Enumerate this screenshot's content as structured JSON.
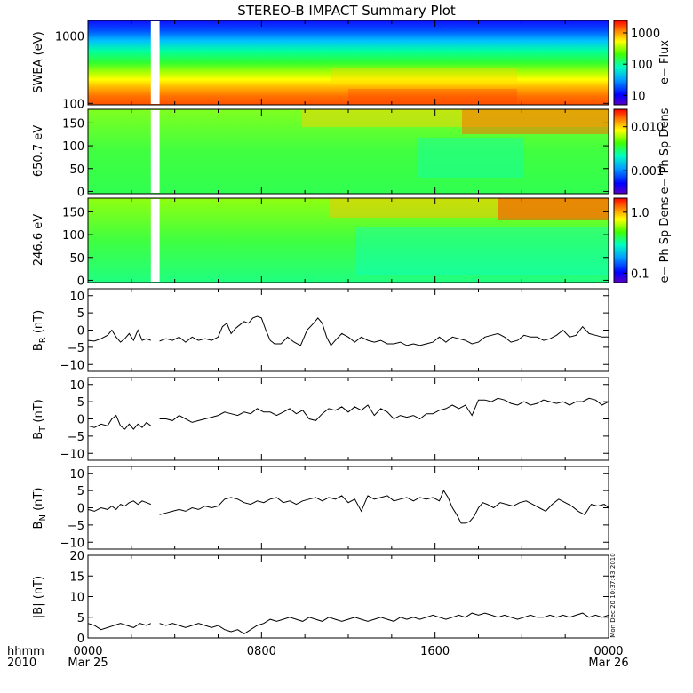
{
  "title": "STEREO-B IMPACT Summary Plot",
  "stamp": "Mon Dec 20 10:37:43 2010",
  "time_axis": {
    "row1_label": "hhmm",
    "row2_label": "2010",
    "ticks": [
      {
        "t": 0,
        "hhmm": "0000",
        "date": "Mar 25"
      },
      {
        "t": 8,
        "hhmm": "0800",
        "date": ""
      },
      {
        "t": 16,
        "hhmm": "1600",
        "date": ""
      },
      {
        "t": 24,
        "hhmm": "0000",
        "date": "Mar 26"
      }
    ],
    "range_hours": [
      0,
      24
    ],
    "data_gap_hours": [
      2.9,
      3.3
    ]
  },
  "chart_data": [
    {
      "type": "heatmap",
      "ylabel": "SWEA (eV)",
      "y_scale": "log",
      "ylim": [
        95,
        1700
      ],
      "y_ticks": [
        {
          "v": 100,
          "label": "100"
        },
        {
          "v": 1000,
          "label": "1000"
        }
      ],
      "colorbar": {
        "label": "e− Flux",
        "scale": "log",
        "range": [
          5,
          2500
        ],
        "ticks": [
          {
            "v": 10,
            "label": "10"
          },
          {
            "v": 100,
            "label": "100"
          },
          {
            "v": 1000,
            "label": "1000"
          }
        ]
      }
    },
    {
      "type": "heatmap",
      "ylabel": "650.7 eV",
      "y_scale": "linear",
      "ylim": [
        -5,
        180
      ],
      "y_ticks": [
        {
          "v": 0,
          "label": "0"
        },
        {
          "v": 50,
          "label": "50"
        },
        {
          "v": 100,
          "label": "100"
        },
        {
          "v": 150,
          "label": "150"
        }
      ],
      "colorbar": {
        "label": "e− Ph Sp Dens",
        "scale": "log",
        "range": [
          0.0003,
          0.025
        ],
        "ticks": [
          {
            "v": 0.001,
            "label": "0.001"
          },
          {
            "v": 0.01,
            "label": "0.010"
          }
        ]
      }
    },
    {
      "type": "heatmap",
      "ylabel": "246.6 eV",
      "y_scale": "linear",
      "ylim": [
        -5,
        180
      ],
      "y_ticks": [
        {
          "v": 0,
          "label": "0"
        },
        {
          "v": 50,
          "label": "50"
        },
        {
          "v": 100,
          "label": "100"
        },
        {
          "v": 150,
          "label": "150"
        }
      ],
      "colorbar": {
        "label": "e− Ph Sp Dens",
        "scale": "log",
        "range": [
          0.07,
          1.7
        ],
        "ticks": [
          {
            "v": 0.1,
            "label": "0.1"
          },
          {
            "v": 1.0,
            "label": "1.0"
          }
        ]
      }
    },
    {
      "type": "line",
      "ylabel": "B",
      "ylabel_sub": "R",
      "ylabel_unit": "(nT)",
      "ylim": [
        -12,
        12
      ],
      "y_ticks": [
        {
          "v": -10,
          "label": "−10"
        },
        {
          "v": -5,
          "label": "−5"
        },
        {
          "v": 0,
          "label": "0"
        },
        {
          "v": 5,
          "label": "5"
        },
        {
          "v": 10,
          "label": "10"
        }
      ],
      "series": [
        {
          "x": [
            0,
            0.3,
            0.6,
            0.9,
            1.1,
            1.3,
            1.5,
            1.7,
            1.9,
            2.1,
            2.3,
            2.5,
            2.7,
            2.9,
            3.3,
            3.6,
            3.9,
            4.2,
            4.5,
            4.8,
            5.1,
            5.4,
            5.7,
            6.0,
            6.2,
            6.4,
            6.6,
            6.8,
            7.0,
            7.2,
            7.4,
            7.6,
            7.8,
            8.0,
            8.2,
            8.4,
            8.6,
            8.9,
            9.2,
            9.5,
            9.8,
            10.1,
            10.4,
            10.6,
            10.8,
            11.0,
            11.2,
            11.4,
            11.7,
            12.0,
            12.3,
            12.6,
            12.9,
            13.2,
            13.5,
            13.8,
            14.1,
            14.4,
            14.7,
            15.0,
            15.3,
            15.6,
            15.9,
            16.2,
            16.5,
            16.8,
            17.1,
            17.4,
            17.7,
            18.0,
            18.3,
            18.6,
            18.9,
            19.2,
            19.5,
            19.8,
            20.1,
            20.4,
            20.7,
            21.0,
            21.3,
            21.6,
            21.9,
            22.2,
            22.5,
            22.8,
            23.1,
            23.4,
            23.7,
            24.0
          ],
          "y": [
            -3,
            -3.2,
            -2.5,
            -1.5,
            0,
            -2,
            -3.5,
            -2.5,
            -1,
            -3,
            0,
            -3,
            -2.5,
            -3,
            -3.2,
            -2.5,
            -3,
            -2,
            -3.5,
            -2,
            -3,
            -2.5,
            -3,
            -2,
            1,
            2,
            -1,
            0.5,
            1.5,
            2.5,
            2,
            3.5,
            4,
            3.5,
            0,
            -3,
            -4,
            -4,
            -2,
            -3.5,
            -4.5,
            0,
            2,
            3.5,
            2,
            -2,
            -4.5,
            -3,
            -1,
            -2,
            -3.5,
            -2,
            -3,
            -3.5,
            -3,
            -4,
            -4,
            -3.5,
            -4.5,
            -4,
            -4.5,
            -4,
            -3.5,
            -2,
            -3.5,
            -2,
            -2.5,
            -3,
            -4,
            -3.5,
            -2,
            -1.5,
            -1,
            -2,
            -3.5,
            -3,
            -1.5,
            -2,
            -2,
            -3,
            -2.5,
            -1.5,
            0,
            -2,
            -1.5,
            1,
            -1,
            -1.5,
            -2,
            -2
          ]
        }
      ]
    },
    {
      "type": "line",
      "ylabel": "B",
      "ylabel_sub": "T",
      "ylabel_unit": "(nT)",
      "ylim": [
        -12,
        12
      ],
      "y_ticks": [
        {
          "v": -10,
          "label": "−10"
        },
        {
          "v": -5,
          "label": "−5"
        },
        {
          "v": 0,
          "label": "0"
        },
        {
          "v": 5,
          "label": "5"
        },
        {
          "v": 10,
          "label": "10"
        }
      ],
      "series": [
        {
          "x": [
            0,
            0.3,
            0.6,
            0.9,
            1.1,
            1.3,
            1.5,
            1.7,
            1.9,
            2.1,
            2.3,
            2.5,
            2.7,
            2.9,
            3.3,
            3.6,
            3.9,
            4.2,
            4.5,
            4.8,
            5.1,
            5.4,
            5.7,
            6.0,
            6.3,
            6.6,
            6.9,
            7.2,
            7.5,
            7.8,
            8.1,
            8.4,
            8.7,
            9.0,
            9.3,
            9.6,
            9.9,
            10.2,
            10.5,
            10.8,
            11.1,
            11.4,
            11.7,
            12.0,
            12.3,
            12.6,
            12.9,
            13.2,
            13.5,
            13.8,
            14.1,
            14.4,
            14.7,
            15.0,
            15.3,
            15.6,
            15.9,
            16.2,
            16.5,
            16.8,
            17.1,
            17.4,
            17.7,
            18.0,
            18.3,
            18.6,
            18.9,
            19.2,
            19.5,
            19.8,
            20.1,
            20.4,
            20.7,
            21.0,
            21.3,
            21.6,
            21.9,
            22.2,
            22.5,
            22.8,
            23.1,
            23.4,
            23.7,
            24.0
          ],
          "y": [
            -2,
            -2.5,
            -1.5,
            -2,
            0,
            1,
            -2,
            -3,
            -1.5,
            -3,
            -1.5,
            -2.5,
            -1,
            -2,
            0,
            0,
            -0.5,
            1,
            0,
            -1,
            -0.5,
            0,
            0.5,
            1,
            2,
            1.5,
            1,
            2,
            1.5,
            3,
            2,
            2,
            1,
            2,
            3,
            1.5,
            2.5,
            0,
            -0.5,
            1.5,
            3,
            2.5,
            3.5,
            2,
            3.5,
            2.5,
            4,
            1,
            3,
            2,
            0,
            1,
            0.5,
            1,
            0,
            1.5,
            1.5,
            2.5,
            3,
            4,
            3,
            4,
            1,
            5.5,
            5.5,
            5,
            6,
            5.5,
            4.5,
            4,
            5,
            4,
            4.5,
            5.5,
            5,
            4.5,
            5,
            4,
            5,
            5,
            6,
            5.5,
            4,
            5
          ]
        }
      ]
    },
    {
      "type": "line",
      "ylabel": "B",
      "ylabel_sub": "N",
      "ylabel_unit": "(nT)",
      "ylim": [
        -12,
        12
      ],
      "y_ticks": [
        {
          "v": -10,
          "label": "−10"
        },
        {
          "v": -5,
          "label": "−5"
        },
        {
          "v": 0,
          "label": "0"
        },
        {
          "v": 5,
          "label": "5"
        },
        {
          "v": 10,
          "label": "10"
        }
      ],
      "series": [
        {
          "x": [
            0,
            0.3,
            0.6,
            0.9,
            1.1,
            1.3,
            1.5,
            1.7,
            1.9,
            2.1,
            2.3,
            2.5,
            2.7,
            2.9,
            3.3,
            3.6,
            3.9,
            4.2,
            4.5,
            4.8,
            5.1,
            5.4,
            5.7,
            6.0,
            6.3,
            6.6,
            6.9,
            7.2,
            7.5,
            7.8,
            8.1,
            8.4,
            8.7,
            9.0,
            9.3,
            9.6,
            9.9,
            10.2,
            10.5,
            10.8,
            11.1,
            11.4,
            11.7,
            12.0,
            12.3,
            12.6,
            12.9,
            13.2,
            13.5,
            13.8,
            14.1,
            14.4,
            14.7,
            15.0,
            15.3,
            15.6,
            15.9,
            16.2,
            16.4,
            16.6,
            16.8,
            17.0,
            17.2,
            17.4,
            17.6,
            17.8,
            18.0,
            18.2,
            18.4,
            18.7,
            19.0,
            19.3,
            19.6,
            19.9,
            20.2,
            20.5,
            20.8,
            21.1,
            21.4,
            21.7,
            22.0,
            22.3,
            22.6,
            22.9,
            23.2,
            23.5,
            23.8,
            24.0
          ],
          "y": [
            -0.5,
            -1,
            0,
            -0.5,
            0.5,
            -0.5,
            1,
            0.5,
            1.5,
            2,
            1,
            2,
            1.5,
            1,
            -2,
            -1.5,
            -1,
            -0.5,
            -1,
            0,
            -0.5,
            0.5,
            0,
            0.5,
            2.5,
            3,
            2.5,
            1.5,
            1,
            2,
            1.5,
            2.5,
            3,
            1.5,
            2,
            1,
            2,
            2.5,
            3,
            2,
            3,
            2.5,
            3.5,
            1.5,
            2.5,
            -1,
            3.5,
            2.5,
            3,
            3.5,
            2,
            2.5,
            3,
            2,
            3,
            2.5,
            3,
            2,
            5,
            3,
            0,
            -2,
            -4.5,
            -4.5,
            -4,
            -2.5,
            0,
            1.5,
            1,
            0,
            1.5,
            1,
            0.5,
            1.5,
            2,
            1,
            0,
            -1,
            1,
            2.5,
            1.5,
            0.5,
            -1,
            -2,
            1,
            0.5,
            1,
            0
          ]
        }
      ]
    },
    {
      "type": "line",
      "ylabel": "|B|",
      "ylabel_sub": "",
      "ylabel_unit": "(nT)",
      "ylim": [
        0,
        20
      ],
      "y_ticks": [
        {
          "v": 0,
          "label": "0"
        },
        {
          "v": 5,
          "label": "5"
        },
        {
          "v": 10,
          "label": "10"
        },
        {
          "v": 15,
          "label": "15"
        },
        {
          "v": 20,
          "label": "20"
        }
      ],
      "series": [
        {
          "x": [
            0,
            0.3,
            0.6,
            0.9,
            1.2,
            1.5,
            1.8,
            2.1,
            2.4,
            2.7,
            2.9,
            3.3,
            3.6,
            3.9,
            4.2,
            4.5,
            4.8,
            5.1,
            5.4,
            5.7,
            6.0,
            6.3,
            6.6,
            6.9,
            7.2,
            7.5,
            7.8,
            8.1,
            8.4,
            8.7,
            9.0,
            9.3,
            9.6,
            9.9,
            10.2,
            10.5,
            10.8,
            11.1,
            11.4,
            11.7,
            12.0,
            12.3,
            12.6,
            12.9,
            13.2,
            13.5,
            13.8,
            14.1,
            14.4,
            14.7,
            15.0,
            15.3,
            15.6,
            15.9,
            16.2,
            16.5,
            16.8,
            17.1,
            17.4,
            17.7,
            18.0,
            18.3,
            18.6,
            18.9,
            19.2,
            19.5,
            19.8,
            20.1,
            20.4,
            20.7,
            21.0,
            21.3,
            21.6,
            21.9,
            22.2,
            22.5,
            22.8,
            23.1,
            23.4,
            23.7,
            24.0
          ],
          "y": [
            3.5,
            3,
            2,
            2.5,
            3,
            3.5,
            3,
            2.5,
            3.5,
            3,
            3.5,
            3.5,
            3,
            3.5,
            3,
            2.5,
            3,
            3.5,
            3,
            2.5,
            3,
            2,
            1.5,
            2,
            1,
            2,
            3,
            3.5,
            4.5,
            4,
            4.5,
            5,
            4.5,
            4,
            5,
            4.5,
            4,
            5,
            4.5,
            4,
            4.5,
            5,
            4.5,
            4,
            4.5,
            5,
            4.5,
            4,
            5,
            4.5,
            5,
            4.5,
            5,
            5.5,
            5,
            4.5,
            5,
            5.5,
            5,
            6,
            5.5,
            6,
            5.5,
            5,
            5.5,
            5,
            4.5,
            5,
            5.5,
            5,
            5,
            5.5,
            5,
            5.5,
            5,
            5.5,
            6,
            5,
            5.5,
            5,
            5.5
          ]
        }
      ]
    }
  ]
}
